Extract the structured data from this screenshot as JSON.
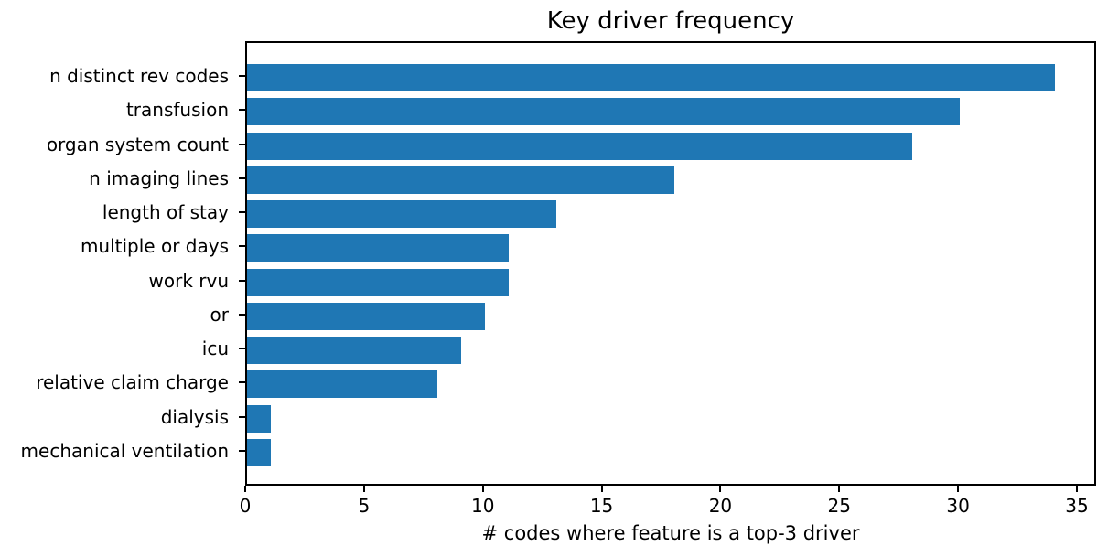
{
  "chart_data": {
    "type": "bar",
    "orientation": "horizontal",
    "title": "Key driver frequency",
    "xlabel": "# codes where feature is a top-3 driver",
    "categories": [
      "n distinct rev codes",
      "transfusion",
      "organ system count",
      "n imaging lines",
      "length of stay",
      "multiple or days",
      "work rvu",
      "or",
      "icu",
      "relative claim charge",
      "dialysis",
      "mechanical ventilation"
    ],
    "values": [
      34,
      30,
      28,
      18,
      13,
      11,
      11,
      10,
      9,
      8,
      1,
      1
    ],
    "xlim": [
      0,
      35
    ],
    "xticks": [
      0,
      5,
      10,
      15,
      20,
      25,
      30,
      35
    ],
    "bar_color": "#1f77b4",
    "grid": false,
    "legend_position": "none",
    "background_color": "#ffffff"
  }
}
